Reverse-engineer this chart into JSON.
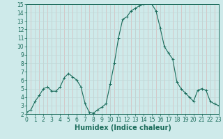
{
  "xlabel": "Humidex (Indice chaleur)",
  "x": [
    0,
    0.5,
    1,
    1.5,
    2,
    2.5,
    3,
    3.5,
    4,
    4.5,
    5,
    5.5,
    6,
    6.5,
    7,
    7.5,
    8,
    8.5,
    9,
    9.5,
    10,
    10.5,
    11,
    11.5,
    12,
    12.5,
    13,
    13.5,
    14,
    14.5,
    15,
    15.5,
    16,
    16.5,
    17,
    17.5,
    18,
    18.5,
    19,
    19.5,
    20,
    20.5,
    21,
    21.5,
    22,
    22.5,
    23
  ],
  "y": [
    2.2,
    2.5,
    3.5,
    4.2,
    5.0,
    5.2,
    4.7,
    4.7,
    5.2,
    6.3,
    6.8,
    6.4,
    6.0,
    5.2,
    3.2,
    2.2,
    2.1,
    2.5,
    2.8,
    3.2,
    5.5,
    8.0,
    11.0,
    13.2,
    13.5,
    14.2,
    14.5,
    14.8,
    15.0,
    15.2,
    15.0,
    14.2,
    12.2,
    10.0,
    9.2,
    8.5,
    5.8,
    5.0,
    4.5,
    4.0,
    3.5,
    4.8,
    5.0,
    4.8,
    3.5,
    3.2,
    3.0
  ],
  "line_color": "#1a6b5a",
  "bg_color": "#ceeaea",
  "grid_h_color": "#c0d8d8",
  "grid_v_color": "#d8b8b8",
  "xlim": [
    0,
    23
  ],
  "ylim": [
    2,
    15
  ],
  "xticks": [
    0,
    1,
    2,
    3,
    4,
    5,
    6,
    7,
    8,
    9,
    10,
    11,
    12,
    13,
    14,
    15,
    16,
    17,
    18,
    19,
    20,
    21,
    22,
    23
  ],
  "yticks": [
    2,
    3,
    4,
    5,
    6,
    7,
    8,
    9,
    10,
    11,
    12,
    13,
    14,
    15
  ],
  "tick_fontsize": 5.5,
  "xlabel_fontsize": 7
}
